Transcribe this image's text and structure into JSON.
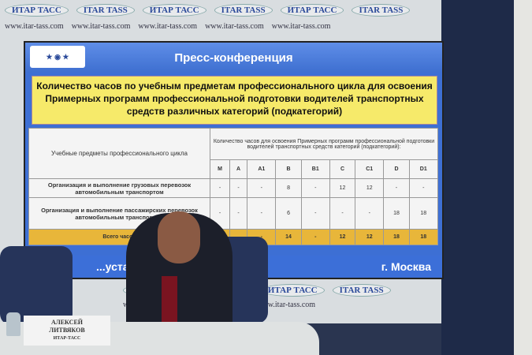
{
  "wall": {
    "logo_ru": "ИТАР ТАСС",
    "logo_en": "ITAR TASS",
    "url": "www.itar-tass.com"
  },
  "slide": {
    "header": "Пресс-конференция",
    "title": "Количество часов по учебным предметам профессионального цикла для освоения Примерных программ профессиональной подготовки водителей транспортных средств различных категорий (подкатегорий)",
    "table": {
      "subject_header": "Учебные предметы профессионального цикла",
      "hours_header": "Количество часов для освоения Примерных программ профессиональной подготовки водителей транспортных средств категорий (подкатегорий):",
      "categories": [
        "M",
        "A",
        "A1",
        "B",
        "B1",
        "C",
        "C1",
        "D",
        "D1"
      ],
      "rows": [
        {
          "subject": "Организация и выполнение грузовых перевозок автомобильным транспортом",
          "values": [
            "-",
            "-",
            "-",
            "8",
            "-",
            "12",
            "12",
            "-",
            "-"
          ]
        },
        {
          "subject": "Организация и выполнение пассажирских перевозок автомобильным транспортом",
          "values": [
            "-",
            "-",
            "-",
            "6",
            "-",
            "-",
            "-",
            "18",
            "18"
          ]
        }
      ],
      "total": {
        "label": "Всего часов",
        "values": [
          "",
          "",
          "-",
          "14",
          "-",
          "12",
          "12",
          "18",
          "18"
        ]
      }
    },
    "date": "...уста 2014",
    "city": "г. Москва"
  },
  "nameplate": {
    "first": "АЛЕКСЕЙ",
    "last": "ЛИТВЯКОВ",
    "org": "ИТАР-ТАСС"
  }
}
